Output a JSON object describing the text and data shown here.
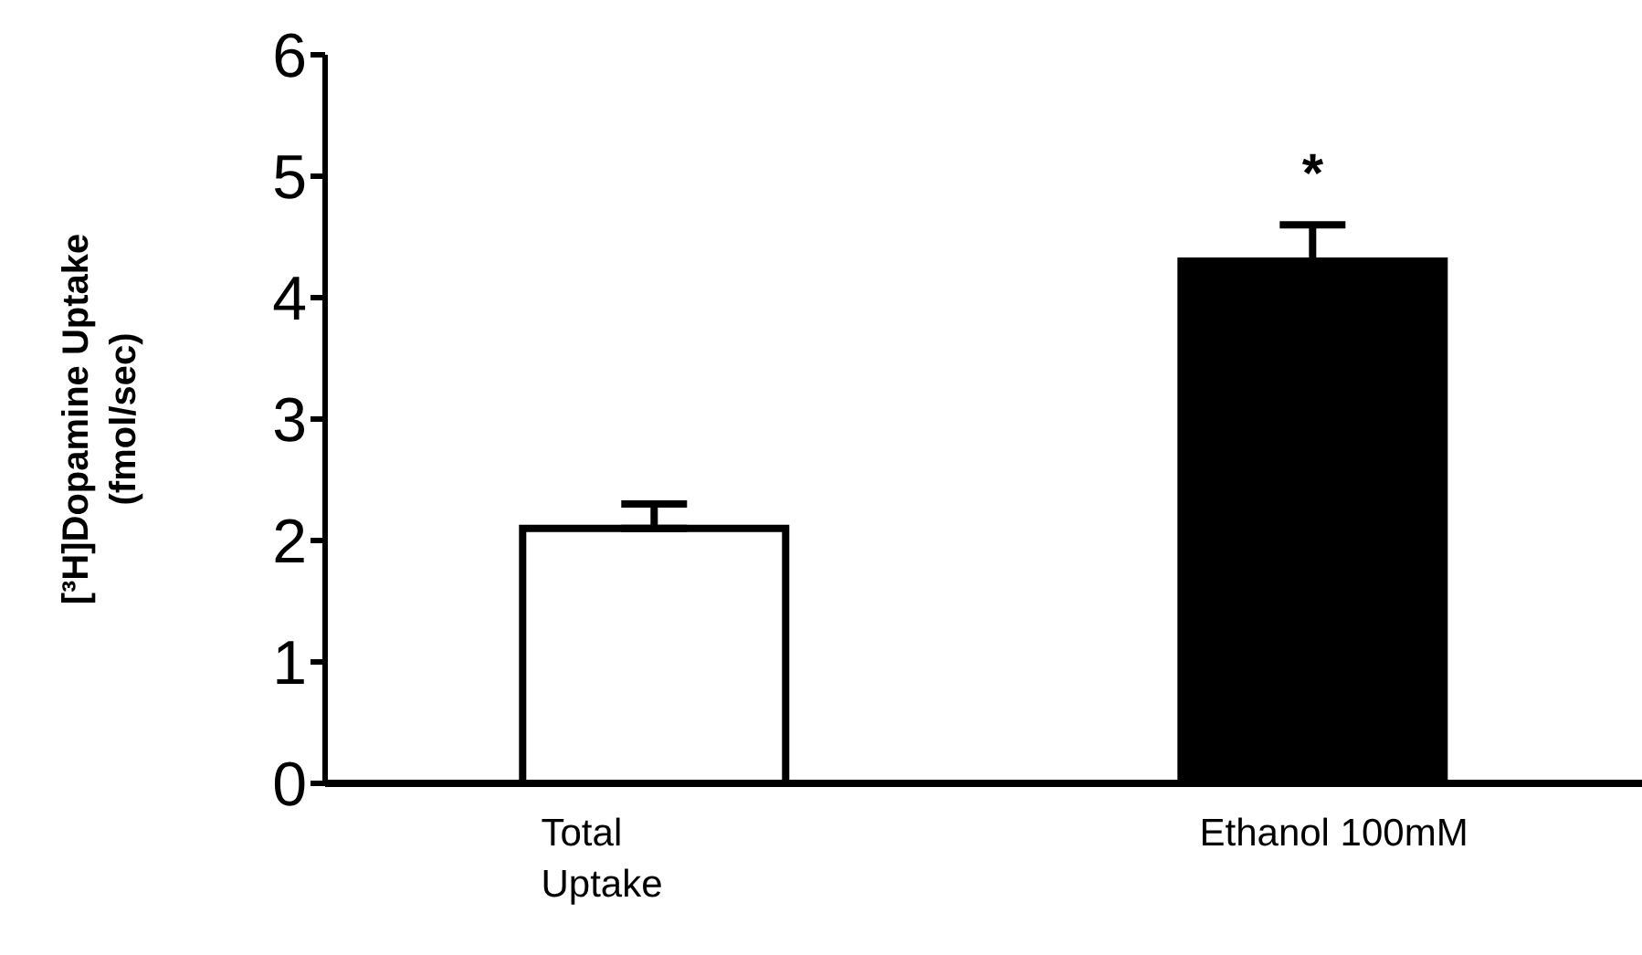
{
  "chart_data": {
    "type": "bar",
    "ylabel": "[³H]Dopamine Uptake\n(fmol/sec)",
    "categories": [
      "Total\nUptake",
      "Ethanol 100mM"
    ],
    "values": [
      2.1,
      4.3
    ],
    "colors": [
      "#ffffff",
      "#000000"
    ],
    "errors": [
      [
        2.1,
        2.3
      ],
      [
        4.3,
        4.6
      ]
    ],
    "ylim": [
      0,
      6
    ],
    "yticks": [
      0,
      1,
      2,
      3,
      4,
      5,
      6
    ],
    "grid": false,
    "legend": false,
    "annotations": [
      "*"
    ]
  }
}
